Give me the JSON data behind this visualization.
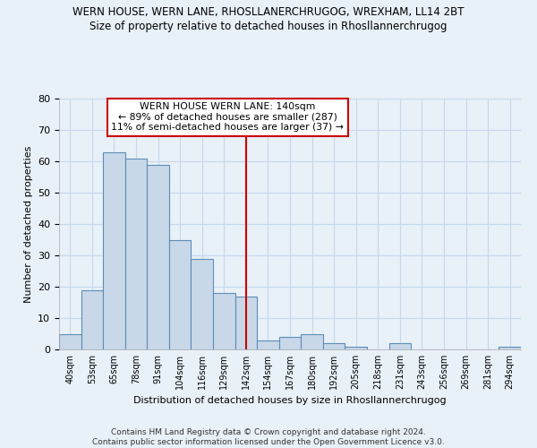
{
  "title1": "WERN HOUSE, WERN LANE, RHOSLLANERCHRUGOG, WREXHAM, LL14 2BT",
  "title2": "Size of property relative to detached houses in Rhosllannerchrugog",
  "xlabel": "Distribution of detached houses by size in Rhosllannerchrugog",
  "ylabel": "Number of detached properties",
  "footer": "Contains HM Land Registry data © Crown copyright and database right 2024.\nContains public sector information licensed under the Open Government Licence v3.0.",
  "categories": [
    "40sqm",
    "53sqm",
    "65sqm",
    "78sqm",
    "91sqm",
    "104sqm",
    "116sqm",
    "129sqm",
    "142sqm",
    "154sqm",
    "167sqm",
    "180sqm",
    "192sqm",
    "205sqm",
    "218sqm",
    "231sqm",
    "243sqm",
    "256sqm",
    "269sqm",
    "281sqm",
    "294sqm"
  ],
  "values": [
    5,
    19,
    63,
    61,
    59,
    35,
    29,
    18,
    17,
    3,
    4,
    5,
    2,
    1,
    0,
    2,
    0,
    0,
    0,
    0,
    1
  ],
  "bar_color": "#c8d8e8",
  "bar_edge_color": "#5b8db8",
  "bar_linewidth": 0.8,
  "grid_color": "#c5d8ec",
  "background_color": "#e8f0f8",
  "annotation_box_color": "#ffffff",
  "annotation_line_color": "#cc0000",
  "annotation_text": "WERN HOUSE WERN LANE: 140sqm\n← 89% of detached houses are smaller (287)\n11% of semi-detached houses are larger (37) →",
  "vline_x_index": 8,
  "vline_color": "#cc0000",
  "ylim": [
    0,
    80
  ],
  "yticks": [
    0,
    10,
    20,
    30,
    40,
    50,
    60,
    70,
    80
  ]
}
